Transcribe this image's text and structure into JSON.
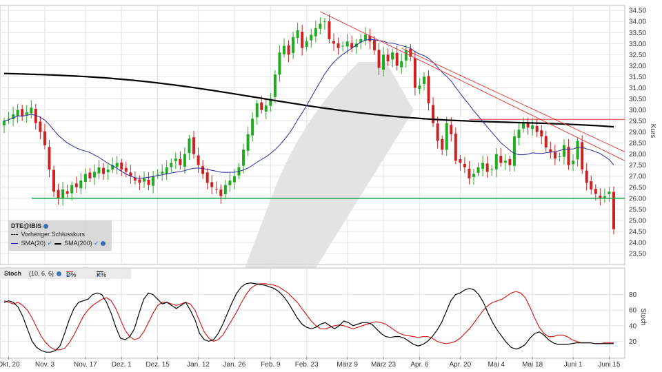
{
  "chart_data": [
    {
      "type": "candlestick",
      "instrument": "DTE@IBIS",
      "ylabel": "Kurs",
      "ylim": [
        23.0,
        34.6
      ],
      "yticks": [
        "34.50",
        "34.00",
        "33.50",
        "33.00",
        "32.50",
        "32.00",
        "31.50",
        "31.00",
        "30.50",
        "30.00",
        "29.50",
        "29.00",
        "28.50",
        "28.00",
        "27.50",
        "27.00",
        "26.50",
        "26.00",
        "25.50",
        "25.00",
        "24.50",
        "24.00",
        "23.50"
      ],
      "xticks": [
        "Okt. 20",
        "Nov. 3",
        "Nov. 17",
        "Dez. 1",
        "Dez. 15",
        "Jan. 12",
        "Jan. 26",
        "Feb. 9",
        "Feb. 23",
        "März 9",
        "März 23",
        "Apr. 6",
        "Apr. 20",
        "Mai 4",
        "Mai 18",
        "Juni 1",
        "Juni 15"
      ],
      "legend": {
        "title": "DTE@IBIS",
        "items": [
          "Vorheriger Schlusskurs",
          "SMA(20)",
          "SMA(200)"
        ]
      },
      "closes": [
        29.5,
        29.6,
        29.8,
        30.0,
        29.7,
        29.9,
        30.1,
        29.4,
        29.0,
        28.4,
        27.3,
        26.3,
        26.0,
        26.4,
        26.2,
        26.6,
        26.5,
        26.8,
        27.1,
        26.9,
        27.2,
        27.4,
        27.1,
        27.3,
        27.5,
        27.6,
        27.3,
        27.2,
        27.0,
        26.8,
        26.7,
        26.9,
        26.6,
        27.0,
        27.1,
        27.2,
        27.4,
        27.6,
        27.8,
        27.5,
        28.0,
        28.7,
        28.0,
        27.5,
        27.1,
        26.7,
        26.5,
        26.4,
        26.1,
        26.6,
        26.8,
        27.0,
        27.4,
        28.2,
        28.9,
        29.6,
        30.3,
        30.0,
        30.2,
        30.5,
        31.6,
        32.6,
        32.9,
        32.5,
        33.3,
        33.6,
        32.8,
        33.1,
        33.4,
        33.7,
        33.9,
        34.0,
        33.2,
        33.0,
        32.8,
        32.9,
        33.1,
        32.8,
        33.0,
        33.2,
        33.4,
        33.1,
        32.7,
        31.9,
        32.5,
        32.2,
        32.6,
        32.0,
        32.2,
        32.7,
        32.4,
        31.0,
        31.1,
        31.5,
        30.3,
        29.4,
        28.6,
        28.2,
        29.4,
        28.9,
        27.7,
        27.6,
        27.4,
        26.9,
        27.1,
        27.4,
        27.6,
        27.2,
        27.3,
        28.0,
        27.6,
        27.7,
        27.5,
        28.8,
        29.1,
        29.4,
        29.2,
        29.3,
        29.0,
        28.8,
        28.3,
        28.1,
        27.8,
        27.9,
        28.4,
        27.5,
        27.7,
        28.6,
        27.3,
        26.7,
        26.4,
        26.2,
        26.0,
        26.1,
        26.3,
        24.6
      ],
      "sma20_style": "#2b2b9a",
      "sma200_style": "#000000",
      "support_level": 26.0,
      "resistance_level": 29.57,
      "trend_lines": [
        {
          "from_index": 70,
          "from": 34.45,
          "to_index": 134,
          "to": 27.7
        },
        {
          "from_index": 88,
          "from": 32.8,
          "to_index": 134,
          "to": 28.1
        }
      ],
      "colors": {
        "up": "#22aa22",
        "down": "#cc2222",
        "support": "#1fa84a",
        "trend": "#e04040"
      }
    },
    {
      "type": "line",
      "name": "Stoch",
      "legend": {
        "title": "Stoch",
        "params": "(10, 6, 6)",
        "items": [
          "D%",
          "K%"
        ]
      },
      "ylabel": "Stoch",
      "ylim": [
        0,
        100
      ],
      "yticks": [
        "80",
        "60",
        "40",
        "20"
      ],
      "series": [
        {
          "name": "D%",
          "color": "#cc2222",
          "values": [
            72,
            70,
            68,
            70,
            66,
            60,
            50,
            38,
            26,
            18,
            12,
            9,
            9,
            11,
            18,
            28,
            40,
            52,
            60,
            66,
            70,
            74,
            76,
            72,
            62,
            48,
            34,
            26,
            22,
            24,
            32,
            44,
            56,
            66,
            70,
            70,
            68,
            66,
            68,
            70,
            68,
            60,
            46,
            32,
            24,
            20,
            22,
            28,
            38,
            48,
            58,
            70,
            80,
            88,
            92,
            94,
            94,
            93,
            92,
            90,
            86,
            82,
            76,
            70,
            62,
            54,
            46,
            40,
            36,
            36,
            38,
            40,
            41,
            40,
            38,
            36,
            38,
            40,
            42,
            44,
            45,
            44,
            42,
            38,
            34,
            30,
            28,
            27,
            26,
            25,
            26,
            26,
            24,
            20,
            18,
            17,
            18,
            20,
            24,
            30,
            36,
            44,
            52,
            60,
            66,
            70,
            72,
            74,
            78,
            82,
            84,
            82,
            76,
            64,
            50,
            38,
            30,
            26,
            26,
            28,
            28,
            26,
            22,
            20,
            18,
            18,
            18,
            17,
            17,
            18,
            18,
            18
          ]
        },
        {
          "name": "K%",
          "color": "#000000",
          "values": [
            70,
            72,
            70,
            64,
            52,
            36,
            20,
            12,
            8,
            6,
            6,
            8,
            14,
            30,
            48,
            62,
            70,
            72,
            74,
            80,
            82,
            80,
            70,
            56,
            38,
            24,
            22,
            26,
            36,
            56,
            74,
            82,
            80,
            74,
            68,
            70,
            66,
            62,
            66,
            70,
            60,
            48,
            30,
            22,
            20,
            22,
            30,
            42,
            56,
            70,
            82,
            90,
            94,
            95,
            94,
            93,
            92,
            90,
            88,
            84,
            78,
            70,
            60,
            50,
            42,
            38,
            36,
            38,
            42,
            44,
            40,
            36,
            40,
            46,
            44,
            40,
            42,
            44,
            44,
            42,
            36,
            30,
            26,
            25,
            26,
            26,
            24,
            20,
            16,
            14,
            16,
            20,
            26,
            34,
            44,
            58,
            72,
            80,
            82,
            86,
            88,
            86,
            80,
            70,
            56,
            44,
            34,
            26,
            18,
            12,
            10,
            12,
            16,
            24,
            30,
            32,
            28,
            22,
            18,
            16,
            16,
            16,
            17,
            18,
            18,
            18,
            18,
            17,
            17,
            17,
            17,
            17
          ]
        }
      ]
    }
  ],
  "stoch_legend": {
    "title": "Stoch",
    "params": "(10, 6, 6)",
    "d_label": "D%",
    "k_label": "K%",
    "check": "✓"
  },
  "price_legend": {
    "title": "DTE@IBIS",
    "prev_close": "Vorheriger Schlusskurs",
    "sma20": "SMA(20)",
    "sma200": "SMA(200)",
    "check": "✓"
  }
}
